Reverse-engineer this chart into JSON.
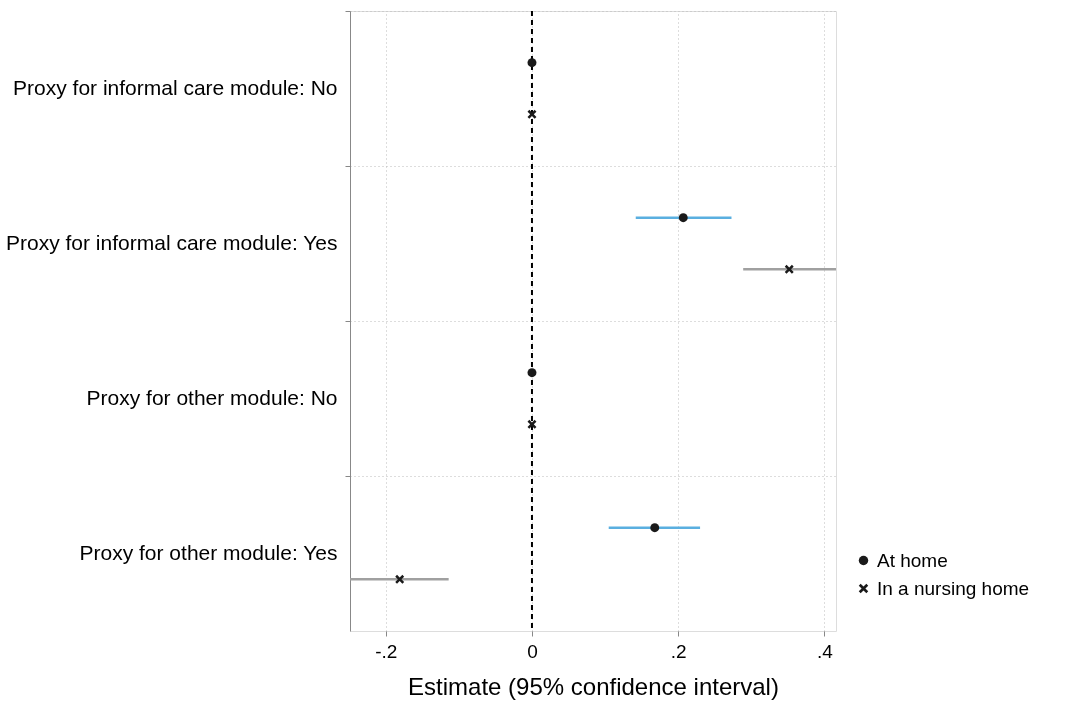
{
  "chart_data": {
    "type": "scatter",
    "orientation": "horizontal",
    "categories": [
      "Proxy for informal care module: No",
      "Proxy for informal care module: Yes",
      "Proxy for other module: No",
      "Proxy for other module: Yes"
    ],
    "series": [
      {
        "name": "At home",
        "color": "#1a1a1a",
        "marker": "circle",
        "values": [
          0,
          0.207,
          0,
          0.168
        ],
        "errors": [
          null,
          [
            0.142,
            0.273
          ],
          null,
          [
            0.105,
            0.23
          ]
        ]
      },
      {
        "name": "In a nursing home",
        "color": "#1a1a1a",
        "marker": "cross",
        "values": [
          0,
          0.352,
          0,
          -0.181
        ],
        "errors": [
          null,
          [
            0.289,
            0.416
          ],
          null,
          [
            -0.249,
            -0.114
          ]
        ]
      }
    ],
    "xlabel": "Estimate (95% confidence interval)",
    "xlim": [
      -0.249,
      0.416
    ],
    "xticks": [
      {
        "value": -0.2,
        "label": "-.2"
      },
      0,
      {
        "value": 0.2,
        "label": ".2"
      },
      {
        "value": 0.4,
        "label": ".4"
      }
    ],
    "ref_lines": [
      {
        "axis": "x",
        "value": 0,
        "color": "#000000",
        "line_style": "dashed"
      }
    ],
    "grid": true,
    "legend": "bottom right"
  }
}
